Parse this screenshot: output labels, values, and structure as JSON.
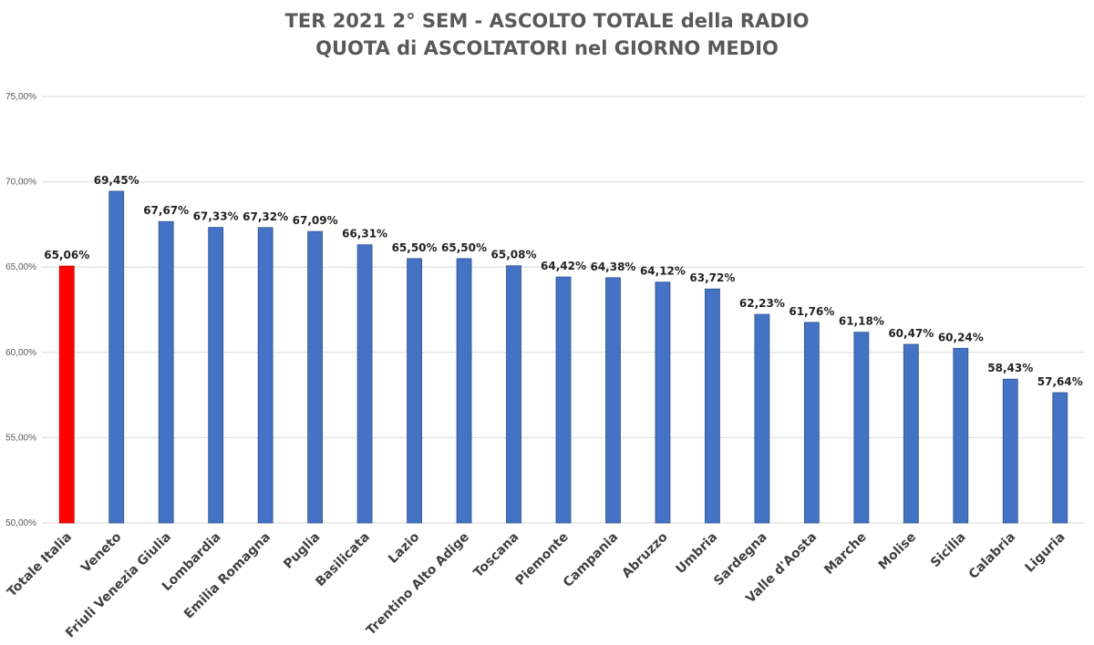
{
  "chart_data": {
    "type": "bar",
    "title": "TER 2021 2° SEM - ASCOLTO TOTALE della RADIO",
    "subtitle": "QUOTA di ASCOLTATORI nel GIORNO MEDIO",
    "xlabel": "",
    "ylabel": "",
    "ylim": [
      50,
      75
    ],
    "yticks": [
      50,
      55,
      60,
      65,
      70,
      75
    ],
    "ytick_labels": [
      "50,00%",
      "55,00%",
      "60,00%",
      "65,00%",
      "70,00%",
      "75,00%"
    ],
    "grid": true,
    "categories": [
      "Totale Italia",
      "Veneto",
      "Friuli Venezia Giulia",
      "Lombardia",
      "Emilia Romagna",
      "Puglia",
      "Basilicata",
      "Lazio",
      "Trentino Alto Adige",
      "Toscana",
      "Piemonte",
      "Campania",
      "Abruzzo",
      "Umbria",
      "Sardegna",
      "Valle d'Aosta",
      "Marche",
      "Molise",
      "Sicilia",
      "Calabria",
      "Liguria"
    ],
    "values": [
      65.06,
      69.45,
      67.67,
      67.33,
      67.32,
      67.09,
      66.31,
      65.5,
      65.5,
      65.08,
      64.42,
      64.38,
      64.12,
      63.72,
      62.23,
      61.76,
      61.18,
      60.47,
      60.24,
      58.43,
      57.64
    ],
    "data_labels": [
      "65,06%",
      "69,45%",
      "67,67%",
      "67,33%",
      "67,32%",
      "67,09%",
      "66,31%",
      "65,50%",
      "65,50%",
      "65,08%",
      "64,42%",
      "64,38%",
      "64,12%",
      "63,72%",
      "62,23%",
      "61,76%",
      "61,18%",
      "60,47%",
      "60,24%",
      "58,43%",
      "57,64%"
    ],
    "colors": {
      "highlight": "#ff0000",
      "bar": "#4472c4",
      "bar_edge": "#2f528f",
      "grid": "#d9d9d9"
    }
  }
}
